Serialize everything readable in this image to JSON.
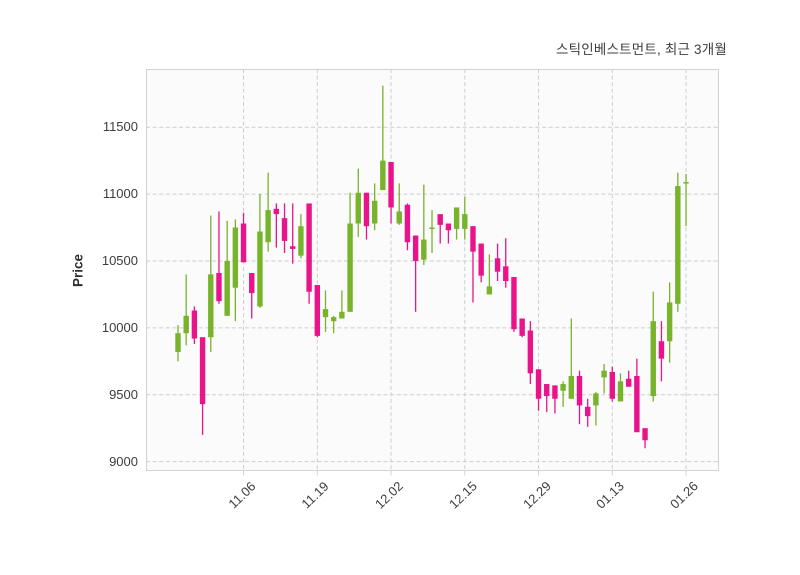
{
  "title": "스틱인베스트먼트, 최근 3개월",
  "colors": {
    "up": "#77b32b",
    "down": "#e9148b",
    "grid": "#cdcdcd",
    "border": "#d2d2d2",
    "plot_bg": "#fbfbfb",
    "text": "#3d3d3d"
  },
  "chart_data": {
    "type": "candlestick",
    "title": "스틱인베스트먼트, 최근 3개월",
    "ylabel": "Price",
    "xlabel": "",
    "grid": true,
    "grid_style": "dashed",
    "legend": "none",
    "y_ticks": [
      9000,
      9500,
      10000,
      10500,
      11000,
      11500
    ],
    "ylim": [
      8930,
      11935
    ],
    "x_tick_labels": [
      "11.06",
      "11.19",
      "12.02",
      "12.15",
      "12.29",
      "01.13",
      "01.26"
    ],
    "x_tick_indexes": [
      8,
      17,
      26,
      35,
      44,
      53,
      62
    ],
    "num_candles": 63,
    "ohlc": [
      [
        9820,
        10020,
        9750,
        9960
      ],
      [
        9960,
        10400,
        9870,
        10090
      ],
      [
        10130,
        10160,
        9880,
        9920
      ],
      [
        9930,
        9930,
        9200,
        9430
      ],
      [
        9930,
        10840,
        9820,
        10400
      ],
      [
        10410,
        10870,
        10180,
        10200
      ],
      [
        10090,
        10800,
        10090,
        10500
      ],
      [
        10300,
        10810,
        10050,
        10750
      ],
      [
        10780,
        10860,
        10490,
        10490
      ],
      [
        10410,
        10410,
        10070,
        10260
      ],
      [
        10160,
        11000,
        10150,
        10720
      ],
      [
        10640,
        11160,
        10570,
        10880
      ],
      [
        10890,
        10930,
        10600,
        10850
      ],
      [
        10820,
        10930,
        10560,
        10650
      ],
      [
        10610,
        10930,
        10480,
        10590
      ],
      [
        10540,
        10850,
        10520,
        10760
      ],
      [
        10930,
        10930,
        10180,
        10270
      ],
      [
        10320,
        10320,
        9930,
        9940
      ],
      [
        10080,
        10280,
        9970,
        10140
      ],
      [
        10050,
        10090,
        9960,
        10080
      ],
      [
        10070,
        10280,
        10070,
        10120
      ],
      [
        10120,
        11010,
        10120,
        10780
      ],
      [
        10780,
        11190,
        10680,
        11010
      ],
      [
        11010,
        11010,
        10660,
        10760
      ],
      [
        10780,
        11080,
        10730,
        10950
      ],
      [
        11030,
        11810,
        11030,
        11250
      ],
      [
        11240,
        11240,
        10780,
        10900
      ],
      [
        10780,
        11080,
        10770,
        10870
      ],
      [
        10920,
        10930,
        10580,
        10640
      ],
      [
        10690,
        10690,
        10120,
        10500
      ],
      [
        10510,
        11070,
        10470,
        10660
      ],
      [
        10740,
        10880,
        10560,
        10750
      ],
      [
        10850,
        10850,
        10630,
        10770
      ],
      [
        10780,
        10780,
        10630,
        10730
      ],
      [
        10740,
        10900,
        10660,
        10900
      ],
      [
        10740,
        10980,
        10660,
        10850
      ],
      [
        10760,
        10760,
        10190,
        10570
      ],
      [
        10630,
        10630,
        10340,
        10390
      ],
      [
        10250,
        10550,
        10250,
        10310
      ],
      [
        10520,
        10630,
        10350,
        10420
      ],
      [
        10460,
        10670,
        10300,
        10350
      ],
      [
        10380,
        10380,
        9970,
        9990
      ],
      [
        10070,
        10070,
        9930,
        9940
      ],
      [
        9980,
        10050,
        9580,
        9660
      ],
      [
        9690,
        9690,
        9380,
        9470
      ],
      [
        9580,
        9580,
        9370,
        9490
      ],
      [
        9570,
        9570,
        9360,
        9470
      ],
      [
        9530,
        9600,
        9410,
        9580
      ],
      [
        9470,
        10070,
        9470,
        9640
      ],
      [
        9640,
        9680,
        9280,
        9420
      ],
      [
        9410,
        9470,
        9260,
        9340
      ],
      [
        9420,
        9520,
        9270,
        9510
      ],
      [
        9630,
        9730,
        9510,
        9680
      ],
      [
        9670,
        9710,
        9450,
        9470
      ],
      [
        9450,
        9660,
        9450,
        9600
      ],
      [
        9620,
        9680,
        9560,
        9560
      ],
      [
        9640,
        9770,
        9220,
        9220
      ],
      [
        9250,
        9250,
        9100,
        9160
      ],
      [
        9490,
        10270,
        9450,
        10050
      ],
      [
        9900,
        10050,
        9600,
        9770
      ],
      [
        9900,
        10340,
        9740,
        10190
      ],
      [
        10180,
        11160,
        10120,
        11060
      ],
      [
        11080,
        11150,
        10760,
        11090
      ]
    ]
  }
}
